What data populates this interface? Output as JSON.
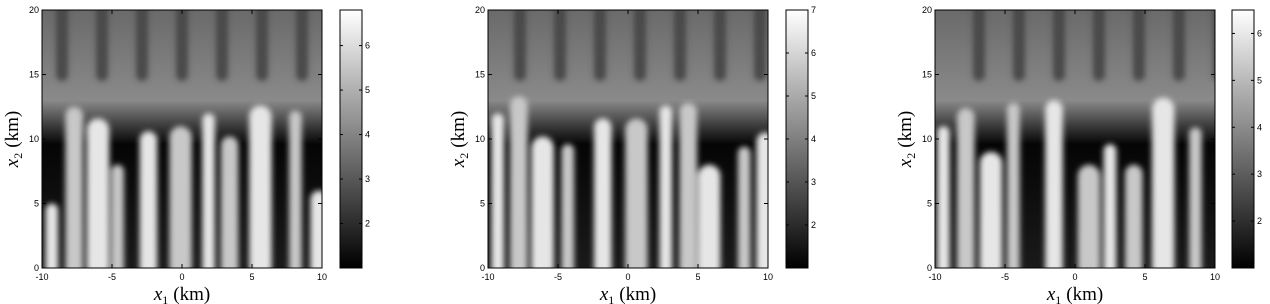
{
  "chart_data": [
    {
      "type": "heatmap",
      "colormap": "gray",
      "xlim": [
        -10,
        10
      ],
      "ylim": [
        0,
        20
      ],
      "xticks": [
        -10,
        -5,
        0,
        5,
        10
      ],
      "yticks": [
        0,
        5,
        10,
        15,
        20
      ],
      "clim": [
        1,
        6.8
      ],
      "cticks": [
        2,
        3,
        4,
        5,
        6
      ],
      "xlabel": {
        "symbol": "x",
        "subscript": "1",
        "unit": "(km)"
      },
      "ylabel": {
        "symbol": "x",
        "subscript": "2",
        "unit": "(km)"
      }
    },
    {
      "type": "heatmap",
      "colormap": "gray",
      "xlim": [
        -10,
        10
      ],
      "ylim": [
        0,
        20
      ],
      "xticks": [
        -10,
        -5,
        0,
        5,
        10
      ],
      "yticks": [
        0,
        5,
        10,
        15,
        20
      ],
      "clim": [
        1,
        7
      ],
      "cticks": [
        2,
        3,
        4,
        5,
        6,
        7
      ],
      "xlabel": {
        "symbol": "x",
        "subscript": "1",
        "unit": "(km)"
      },
      "ylabel": {
        "symbol": "x",
        "subscript": "2",
        "unit": "(km)"
      }
    },
    {
      "type": "heatmap",
      "colormap": "gray",
      "xlim": [
        -10,
        10
      ],
      "ylim": [
        0,
        20
      ],
      "xticks": [
        -10,
        -5,
        0,
        5,
        10
      ],
      "yticks": [
        0,
        5,
        10,
        15,
        20
      ],
      "clim": [
        1,
        6.5
      ],
      "cticks": [
        2,
        3,
        4,
        5,
        6
      ],
      "xlabel": {
        "symbol": "x",
        "subscript": "1",
        "unit": "(km)"
      },
      "ylabel": {
        "symbol": "x",
        "subscript": "2",
        "unit": "(km)"
      }
    }
  ]
}
